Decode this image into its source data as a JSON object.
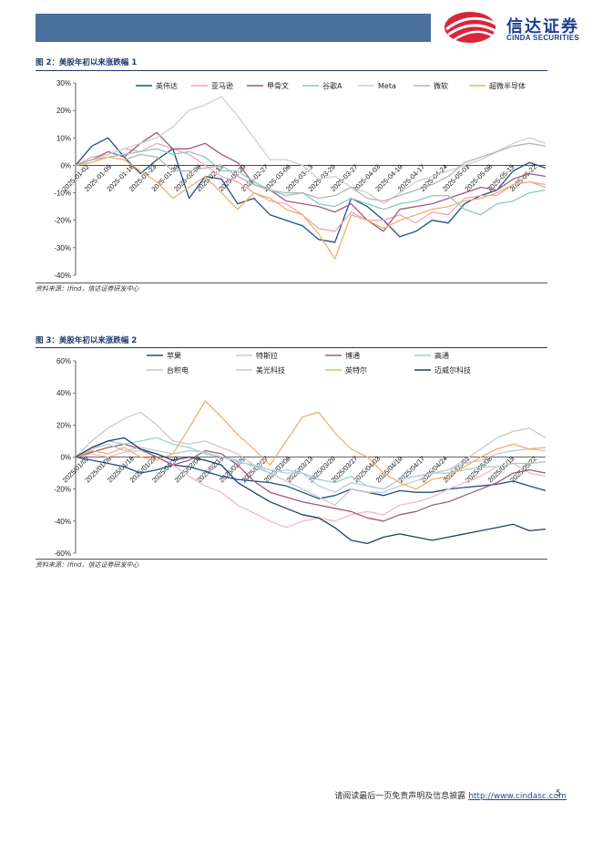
{
  "header": {
    "logo_name": "信达证券",
    "logo_en": "CINDA SECURITIES",
    "bar_color": "#4a6f9a"
  },
  "figures": [
    {
      "title": "图 2：美股年初以来涨跌幅 1",
      "source": "资料来源：Ifind，信达证券研发中心"
    },
    {
      "title": "图 3：美股年初以来涨跌幅 2",
      "source": "资料来源：Ifind，信达证券研发中心"
    }
  ],
  "chart_data": [
    {
      "type": "line",
      "title": "美股年初以来涨跌幅 1",
      "ylim": [
        -40,
        30
      ],
      "y_ticks": [
        30,
        20,
        10,
        0,
        -10,
        -20,
        -30,
        -40
      ],
      "y_tick_labels": [
        "30%",
        "20%",
        "10%",
        "0%",
        "-10%",
        "-20%",
        "-30%",
        "-40%"
      ],
      "x_tick_labels": [
        "2025-01-02",
        "2025-01-09",
        "2025-01-16",
        "2025-01-23",
        "2025-01-30",
        "2025-02-06",
        "2025-02-13",
        "2025-02-20",
        "2025-02-27",
        "2025-03-06",
        "2025-03-13",
        "2025-03-20",
        "2025-03-27",
        "2025-04-03",
        "2025-04-10",
        "2025-04-17",
        "2025-04-24",
        "2025-05-01",
        "2025-05-08",
        "2025-05-15",
        "2025-05-22"
      ],
      "legend_position": "top",
      "series": [
        {
          "name": "英伟达",
          "color": "#1f4e89",
          "values": [
            0,
            7,
            10,
            3,
            -3,
            2,
            6,
            -12,
            -4,
            -5,
            -14,
            -12,
            -18,
            -20,
            -22,
            -27,
            -28,
            -12,
            -15,
            -20,
            -26,
            -24,
            -20,
            -21,
            -14,
            -11,
            -9,
            -2,
            1,
            -1
          ]
        },
        {
          "name": "亚马逊",
          "color": "#f2a6b3",
          "values": [
            0,
            3,
            4,
            6,
            5,
            8,
            6,
            4,
            0,
            -4,
            -6,
            -10,
            -13,
            -14,
            -18,
            -23,
            -24,
            -17,
            -20,
            -20,
            -18,
            -21,
            -17,
            -18,
            -12,
            -11,
            -11,
            -7,
            -6,
            -7
          ]
        },
        {
          "name": "甲骨文",
          "color": "#a0597a",
          "values": [
            0,
            2,
            5,
            3,
            8,
            12,
            6,
            6,
            8,
            4,
            1,
            -7,
            -9,
            -13,
            -14,
            -15,
            -17,
            -14,
            -20,
            -24,
            -16,
            -15,
            -14,
            -12,
            -10,
            -8,
            -9,
            -5,
            -3,
            -4
          ]
        },
        {
          "name": "谷歌A",
          "color": "#8cc8c8",
          "values": [
            0,
            2,
            3,
            4,
            5,
            6,
            4,
            5,
            3,
            -2,
            -2,
            -6,
            -9,
            -11,
            -10,
            -14,
            -15,
            -12,
            -14,
            -16,
            -14,
            -13,
            -11,
            -11,
            -16,
            -18,
            -14,
            -13,
            -10,
            -9
          ]
        },
        {
          "name": "Meta",
          "color": "#cfcfcf",
          "values": [
            0,
            2,
            4,
            6,
            8,
            10,
            14,
            20,
            22,
            25,
            18,
            10,
            2,
            2,
            0,
            -5,
            -4,
            -8,
            -10,
            -14,
            -10,
            -6,
            -4,
            -2,
            0,
            2,
            5,
            8,
            10,
            8
          ]
        },
        {
          "name": "微软",
          "color": "#b5b5b5",
          "values": [
            0,
            2,
            3,
            2,
            4,
            3,
            -2,
            -2,
            -1,
            0,
            -4,
            -7,
            -9,
            -10,
            -10,
            -12,
            -11,
            -8,
            -12,
            -13,
            -11,
            -9,
            -7,
            -4,
            1,
            3,
            5,
            7,
            8,
            7
          ]
        },
        {
          "name": "超微半导体",
          "color": "#f0b06a",
          "values": [
            0,
            1,
            3,
            2,
            -2,
            -6,
            -12,
            -8,
            -4,
            -10,
            -16,
            -10,
            -12,
            -16,
            -18,
            -25,
            -34,
            -18,
            -20,
            -23,
            -20,
            -18,
            -16,
            -15,
            -13,
            -12,
            -10,
            -7,
            -6,
            -8
          ]
        }
      ]
    },
    {
      "type": "line",
      "title": "美股年初以来涨跌幅 2",
      "ylim": [
        -60,
        60
      ],
      "y_ticks": [
        60,
        40,
        20,
        0,
        -20,
        -40,
        -60
      ],
      "y_tick_labels": [
        "60%",
        "40%",
        "20%",
        "0%",
        "-20%",
        "-40%",
        "-60%"
      ],
      "x_tick_labels": [
        "2025/01/02",
        "2025/01/09",
        "2025/01/16",
        "2025/01/23",
        "2025/01/30",
        "2025/02/06",
        "2025/02/13",
        "2025/02/20",
        "2025/02/27",
        "2025/03/06",
        "2025/03/13",
        "2025/03/20",
        "2025/03/27",
        "2025/04/03",
        "2025/04/10",
        "2025/04/17",
        "2025/04/24",
        "2025/05/01",
        "2025/05/08",
        "2025/05/15",
        "2025/05/22"
      ],
      "legend_position": "top",
      "series": [
        {
          "name": "苹果",
          "color": "#1f4e89",
          "values": [
            0,
            -2,
            -4,
            -6,
            -10,
            -8,
            -5,
            -6,
            -9,
            -12,
            -14,
            -15,
            -16,
            -18,
            -22,
            -26,
            -24,
            -20,
            -22,
            -24,
            -21,
            -22,
            -22,
            -20,
            -19,
            -18,
            -17,
            -15,
            -18,
            -21
          ]
        },
        {
          "name": "特斯拉",
          "color": "#f2b9c3",
          "values": [
            0,
            2,
            0,
            3,
            4,
            0,
            -5,
            -12,
            -18,
            -22,
            -30,
            -35,
            -40,
            -44,
            -40,
            -38,
            -40,
            -36,
            -34,
            -36,
            -30,
            -28,
            -25,
            -20,
            -16,
            -12,
            -6,
            -4,
            -10,
            -12
          ]
        },
        {
          "name": "博通",
          "color": "#a0597a",
          "values": [
            0,
            3,
            6,
            8,
            5,
            0,
            -5,
            -2,
            4,
            2,
            -5,
            -15,
            -22,
            -25,
            -28,
            -30,
            -32,
            -34,
            -38,
            -40,
            -36,
            -34,
            -30,
            -28,
            -24,
            -20,
            -16,
            -10,
            -8,
            -10
          ]
        },
        {
          "name": "高通",
          "color": "#9ed0cf",
          "values": [
            0,
            5,
            10,
            8,
            10,
            12,
            8,
            6,
            2,
            0,
            -3,
            -5,
            -8,
            -10,
            -10,
            -14,
            -16,
            -12,
            -18,
            -20,
            -14,
            -12,
            -10,
            -10,
            -8,
            -6,
            -6,
            -4,
            -4,
            -3
          ]
        },
        {
          "name": "台积电",
          "color": "#bcc9df",
          "values": [
            0,
            5,
            8,
            4,
            6,
            4,
            2,
            4,
            3,
            0,
            -2,
            -6,
            -10,
            -8,
            -10,
            -18,
            -22,
            -16,
            -18,
            -20,
            -14,
            -12,
            -10,
            -8,
            -4,
            -2,
            2,
            4,
            5,
            4
          ]
        },
        {
          "name": "美光科技",
          "color": "#c9c9c9",
          "values": [
            0,
            10,
            18,
            24,
            28,
            20,
            10,
            8,
            10,
            6,
            2,
            -5,
            -10,
            -15,
            -20,
            -25,
            -30,
            -20,
            -22,
            -22,
            -18,
            -15,
            -10,
            -8,
            -2,
            5,
            12,
            16,
            18,
            12
          ]
        },
        {
          "name": "英特尔",
          "color": "#f0b06a",
          "values": [
            0,
            4,
            2,
            6,
            0,
            -2,
            2,
            18,
            35,
            25,
            14,
            5,
            -5,
            10,
            25,
            28,
            15,
            5,
            0,
            -10,
            -16,
            -20,
            -14,
            -12,
            -6,
            0,
            5,
            8,
            5,
            6
          ]
        },
        {
          "name": "迈威尔科技",
          "color": "#1c3f6e",
          "values": [
            0,
            6,
            10,
            12,
            5,
            2,
            -2,
            0,
            -2,
            -5,
            -16,
            -22,
            -28,
            -32,
            -36,
            -38,
            -44,
            -52,
            -54,
            -50,
            -48,
            -50,
            -52,
            -50,
            -48,
            -46,
            -44,
            -42,
            -46,
            -45
          ]
        }
      ]
    }
  ],
  "footer": {
    "disclaimer": "请阅读最后一页免责声明及信息披露",
    "url": "http://www.cindasc.com",
    "page": "5"
  }
}
